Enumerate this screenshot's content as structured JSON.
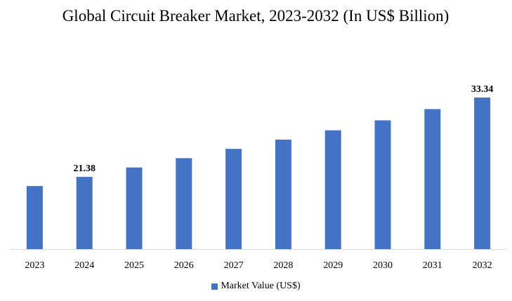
{
  "chart_data": {
    "type": "bar",
    "title": "Global Circuit Breaker Market, 2023-2032 (In US$ Billion)",
    "categories": [
      "2023",
      "2024",
      "2025",
      "2026",
      "2027",
      "2028",
      "2029",
      "2030",
      "2031",
      "2032"
    ],
    "series": [
      {
        "name": "Market Value (US$)",
        "values": [
          20.0,
          21.38,
          22.8,
          24.2,
          25.6,
          27.0,
          28.4,
          29.9,
          31.6,
          33.34
        ],
        "labels": [
          "",
          "21.38",
          "",
          "",
          "",
          "",
          "",
          "",
          "",
          "33.34"
        ]
      }
    ],
    "ylim": [
      10.5,
      35
    ],
    "legend_position": "bottom",
    "grid": false,
    "colors": {
      "bar": "#4472C4",
      "axis": "#D9D9D9"
    }
  }
}
